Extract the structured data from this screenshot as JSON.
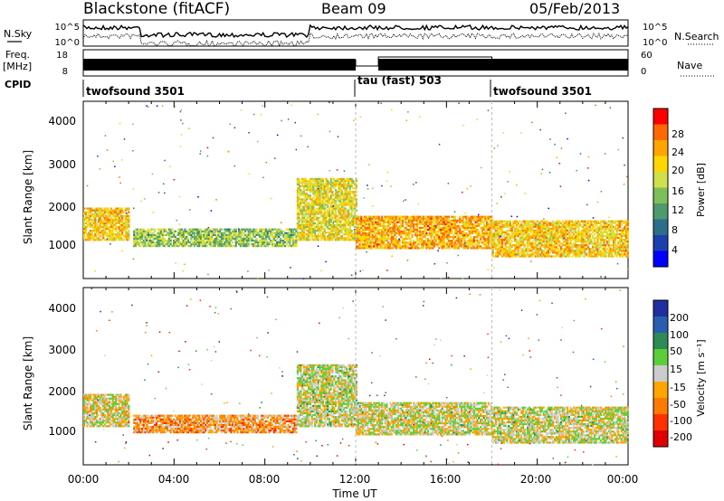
{
  "header": {
    "radar": "Blackstone (fitACF)",
    "beam": "Beam 09",
    "date": "05/Feb/2013"
  },
  "left_labels": {
    "nsky": "N.Sky",
    "freq_line1": "Freq.",
    "freq_line2": "[MHz]",
    "cpid": "CPID"
  },
  "right_labels": {
    "nsearch": "N.Search",
    "nave": "Nave"
  },
  "top_axes": {
    "noise_left_ticks": [
      "10^5",
      "10^0"
    ],
    "noise_right_ticks": [
      "10^5",
      "10^0"
    ],
    "freq_left_ticks": [
      "18",
      "8"
    ],
    "freq_right_ticks": [
      "60",
      "0"
    ]
  },
  "cpid_segments": [
    {
      "label": "twofsound 3501",
      "start_h": 0.0
    },
    {
      "label": "tau (fast) 503",
      "start_h": 12.0
    },
    {
      "label": "twofsound 3501",
      "start_h": 18.0
    }
  ],
  "x_axis": {
    "label": "Time UT",
    "ticks": [
      "00:00",
      "04:00",
      "08:00",
      "12:00",
      "16:00",
      "20:00",
      "00:00"
    ],
    "range_hours": [
      0,
      24
    ]
  },
  "power_panel": {
    "ylabel": "Slant Range [km]",
    "yticks": [
      "4000",
      "3000",
      "2000",
      "1000"
    ],
    "colorbar_label": "Power [dB]",
    "colorbar_ticks": [
      "28",
      "24",
      "20",
      "16",
      "12",
      "8",
      "4"
    ],
    "colors": [
      "#0000ff",
      "#1a3faf",
      "#2a6e8c",
      "#4c9a6e",
      "#7fbf5a",
      "#cfe04a",
      "#ffd700",
      "#ffa500",
      "#ff6a00",
      "#ff0000"
    ]
  },
  "velocity_panel": {
    "ylabel": "Slant Range [km]",
    "yticks": [
      "4000",
      "3000",
      "2000",
      "1000"
    ],
    "colorbar_label": "Velocity [m s⁻¹]",
    "colorbar_ticks": [
      "200",
      "100",
      "50",
      "15",
      "-15",
      "-50",
      "-100",
      "-200"
    ],
    "colors": [
      "#1f2fa0",
      "#2a5cb0",
      "#2e8b57",
      "#5bcf3a",
      "#cccccc",
      "#ffa500",
      "#ff7a00",
      "#ff3000",
      "#e00000"
    ]
  },
  "chart_data": {
    "type": "heatmap",
    "title": "Blackstone (fitACF)",
    "xlabel": "Time UT",
    "ylabel": "Slant Range [km]",
    "xlim_hours": [
      0,
      24
    ],
    "ylim_km": [
      180,
      4500
    ],
    "series": [
      {
        "name": "Power [dB]",
        "scale": [
          0,
          30
        ],
        "bands": [
          {
            "t_start": 0.0,
            "t_end": 2.0,
            "range_km": [
              1100,
              1900
            ],
            "value": 20
          },
          {
            "t_start": 2.2,
            "t_end": 9.4,
            "range_km": [
              950,
              1400
            ],
            "value": 14
          },
          {
            "t_start": 9.4,
            "t_end": 12.0,
            "range_km": [
              1100,
              2600
            ],
            "value": 18
          },
          {
            "t_start": 12.0,
            "t_end": 18.0,
            "range_km": [
              900,
              1700
            ],
            "value": 22
          },
          {
            "t_start": 18.0,
            "t_end": 24.0,
            "range_km": [
              700,
              1600
            ],
            "value": 20
          }
        ]
      },
      {
        "name": "Velocity [m s⁻¹]",
        "scale": [
          -200,
          200
        ],
        "bands": [
          {
            "t_start": 0.0,
            "t_end": 2.0,
            "range_km": [
              1100,
              1900
            ],
            "value": -10
          },
          {
            "t_start": 2.2,
            "t_end": 9.4,
            "range_km": [
              950,
              1400
            ],
            "value": -60
          },
          {
            "t_start": 9.4,
            "t_end": 12.0,
            "range_km": [
              1100,
              2600
            ],
            "value": 5
          },
          {
            "t_start": 12.0,
            "t_end": 18.0,
            "range_km": [
              900,
              1700
            ],
            "value": 0
          },
          {
            "t_start": 18.0,
            "t_end": 24.0,
            "range_km": [
              700,
              1600
            ],
            "value": 0
          }
        ]
      }
    ]
  }
}
